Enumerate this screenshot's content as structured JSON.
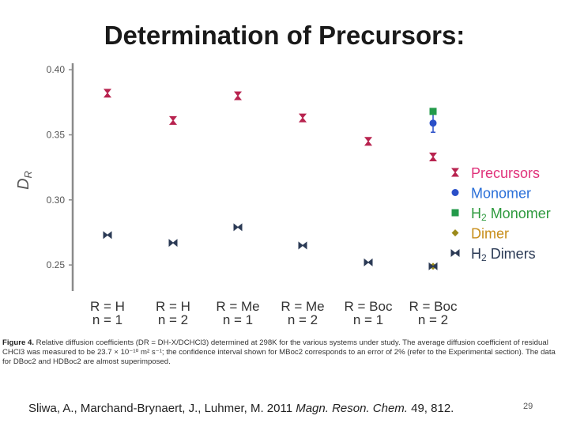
{
  "slide": {
    "title": "Determination of Precursors:",
    "caption_label": "Figure 4.",
    "caption_text": "Relative diffusion coefficients (DR = DH-X/DCHCl3) determined at 298K for the various systems under study. The average diffusion coefficient of residual CHCl3 was measured to be 23.7 × 10⁻¹⁰ m² s⁻¹; the confidence interval shown for MBoc2 corresponds to an error of 2% (refer to the Experimental section). The data for DBoc2 and HDBoc2 are almost superimposed.",
    "citation_authors": "Sliwa, A., Marchand-Brynaert, J., Luhmer, M. 2011",
    "citation_journal": "Magn. Reson. Chem.",
    "citation_tail": "49, 812.",
    "slide_number": "29"
  },
  "colors": {
    "precursors": "#b8234f",
    "monomer": "#2a4fc8",
    "h2_monomer": "#239a4a",
    "dimer": "#9c8a1a",
    "h2_dimers": "#2b3a55",
    "legend_precursors": "#e0327a",
    "legend_monomer": "#2a6fd8",
    "legend_h2_monomer": "#2e9a3e",
    "legend_dimer": "#c88e1a",
    "legend_h2_dimers": "#2b3a55",
    "axis": "#8a8a8a"
  },
  "chart_data": {
    "type": "scatter",
    "ylabel": "DR",
    "ylim": [
      0.23,
      0.405
    ],
    "yticks": [
      "0.40",
      "0.35",
      "0.30",
      "0.25"
    ],
    "ytick_values": [
      0.4,
      0.35,
      0.3,
      0.25
    ],
    "categories": [
      {
        "line1": "R = H",
        "line2": "n = 1"
      },
      {
        "line1": "R = H",
        "line2": "n = 2"
      },
      {
        "line1": "R = Me",
        "line2": "n = 1"
      },
      {
        "line1": "R = Me",
        "line2": "n = 2"
      },
      {
        "line1": "R = Boc",
        "line2": "n = 1"
      },
      {
        "line1": "R = Boc",
        "line2": "n = 2"
      }
    ],
    "series": [
      {
        "name": "Precursors",
        "key": "precursors",
        "marker": "bowtie-v",
        "values": [
          0.382,
          0.361,
          0.38,
          0.363,
          0.345,
          0.333
        ]
      },
      {
        "name": "Monomer",
        "key": "monomer",
        "marker": "circle",
        "values": [
          null,
          null,
          null,
          null,
          null,
          0.359
        ]
      },
      {
        "name": "H2 Monomer",
        "key": "h2_monomer",
        "marker": "square",
        "values": [
          null,
          null,
          null,
          null,
          null,
          0.368
        ]
      },
      {
        "name": "Dimer",
        "key": "dimer",
        "marker": "diamond",
        "values": [
          null,
          null,
          null,
          null,
          null,
          0.249
        ]
      },
      {
        "name": "H2 Dimers",
        "key": "h2_dimers",
        "marker": "bowtie-h",
        "values": [
          0.273,
          0.267,
          0.279,
          0.265,
          0.252,
          0.249
        ]
      }
    ],
    "error_bars": {
      "monomer": 0.007
    },
    "legend_position": "right",
    "legend": [
      {
        "key": "precursors",
        "prefix": "Precursors",
        "sub": "",
        "suffix": ""
      },
      {
        "key": "monomer",
        "prefix": "Monomer",
        "sub": "",
        "suffix": ""
      },
      {
        "key": "h2_monomer",
        "prefix": "H",
        "sub": "2",
        "suffix": " Monomer"
      },
      {
        "key": "dimer",
        "prefix": "Dimer",
        "sub": "",
        "suffix": ""
      },
      {
        "key": "h2_dimers",
        "prefix": "H",
        "sub": "2",
        "suffix": " Dimers"
      }
    ]
  }
}
